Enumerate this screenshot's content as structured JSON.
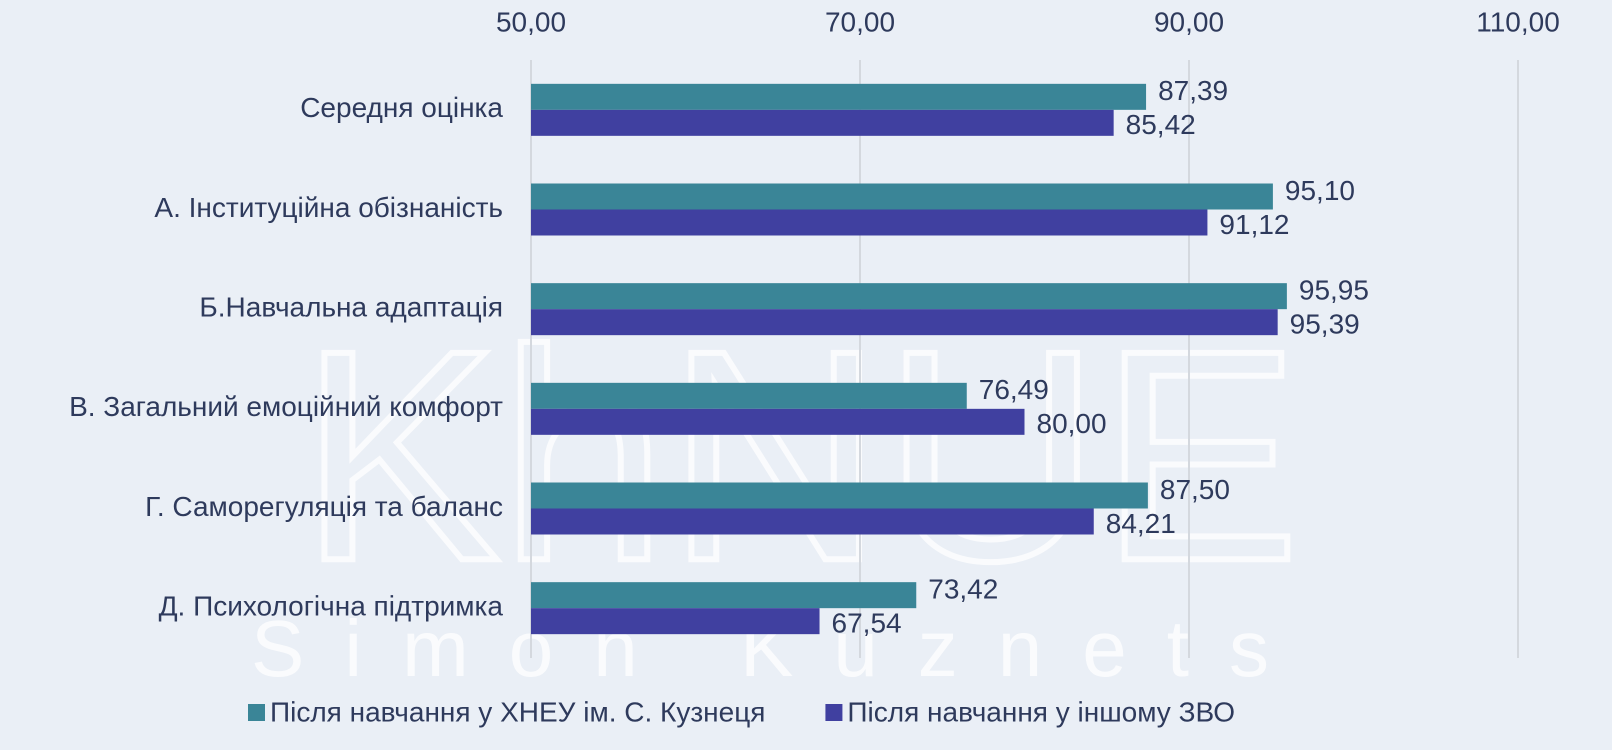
{
  "chart_data": {
    "type": "hbar",
    "watermark": "KhNUE",
    "watermark_subtitle": "Simon Kuznets",
    "categories": [
      "Середня оцінка",
      "А. Інституційна обізнаність",
      "Б.Навчальна адаптація",
      "В. Загальний емоційний комфорт",
      "Г. Саморегуляція та баланс",
      "Д. Психологічна підтримка"
    ],
    "series": [
      {
        "name": "Після навчання у ХНЕУ ім. С. Кузнеця",
        "color": "#3a8597",
        "values": [
          87.39,
          95.1,
          95.95,
          76.49,
          87.5,
          73.42
        ],
        "value_labels": [
          "87,39",
          "95,10",
          "95,95",
          "76,49",
          "87,50",
          "73,42"
        ]
      },
      {
        "name": "Після навчання у іншому ЗВО",
        "color": "#4040a0",
        "values": [
          85.42,
          91.12,
          95.39,
          80.0,
          84.21,
          67.54
        ],
        "value_labels": [
          "85,42",
          "91,12",
          "95,39",
          "80,00",
          "84,21",
          "67,54"
        ]
      }
    ],
    "xlim": [
      50,
      110
    ],
    "xticks": [
      {
        "value": 50,
        "label": "50,00"
      },
      {
        "value": 70,
        "label": "70,00"
      },
      {
        "value": 90,
        "label": "90,00"
      },
      {
        "value": 110,
        "label": "110,00"
      }
    ],
    "grid": true,
    "legend": "bottom"
  }
}
